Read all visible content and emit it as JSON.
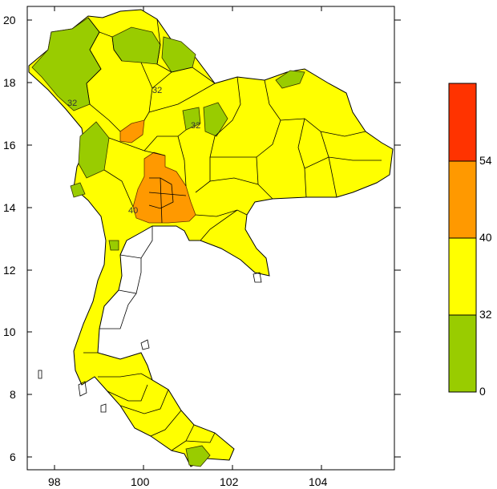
{
  "map": {
    "x_axis_ticks": [
      "98",
      "100",
      "102",
      "104"
    ],
    "y_axis_ticks": [
      "20",
      "18",
      "16",
      "14",
      "12",
      "10",
      "8",
      "6"
    ],
    "colors": {
      "low": "#99cc00",
      "mid": "#ffff00",
      "high": "#ff9900",
      "top": "#ff3300",
      "border": "#000000",
      "contour": "#666600"
    },
    "contour_labels": [
      "32",
      "32",
      "32",
      "40"
    ]
  },
  "legend": {
    "labels": [
      "54",
      "40",
      "32",
      "0"
    ],
    "colors": [
      "#ff3300",
      "#ff9900",
      "#ffff00",
      "#99cc00"
    ]
  }
}
